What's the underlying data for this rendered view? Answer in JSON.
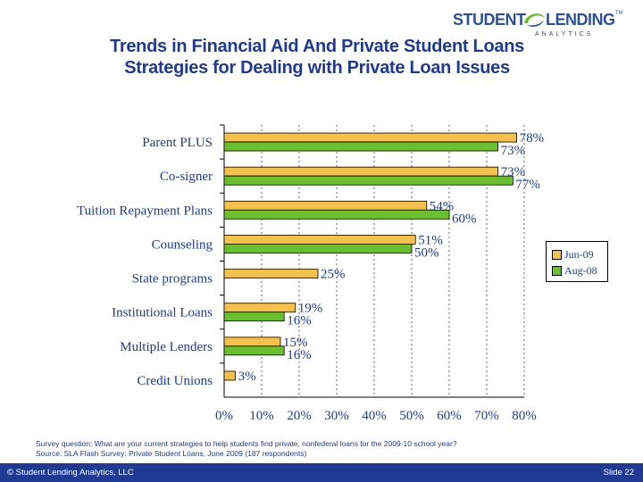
{
  "header": {
    "title_line1": "Trends in Financial Aid And Private Student Loans",
    "title_line2": "Strategies for Dealing with Private Loan Issues"
  },
  "logo": {
    "word1": "STUDENT",
    "word2": "LENDING",
    "tagline": "ANALYTICS",
    "tm": "TM"
  },
  "colors": {
    "jun09": "#f5c14b",
    "aug08": "#6abf2e",
    "text": "#1f3a93",
    "footer_bg": "#1f3a93"
  },
  "chart_data": {
    "type": "bar",
    "orientation": "horizontal",
    "categories": [
      "Parent PLUS",
      "Co-signer",
      "Tuition Repayment Plans",
      "Counseling",
      "State programs",
      "Institutional Loans",
      "Multiple Lenders",
      "Credit Unions"
    ],
    "series": [
      {
        "name": "Jun-09",
        "values": [
          78,
          73,
          54,
          51,
          25,
          19,
          15,
          3
        ],
        "labels": [
          "78%",
          "73%",
          "54%",
          "51%",
          "25%",
          "19%",
          "15%",
          "3%"
        ]
      },
      {
        "name": "Aug-08",
        "values": [
          73,
          77,
          60,
          50,
          null,
          16,
          16,
          null
        ],
        "labels": [
          "73%",
          "77%",
          "60%",
          "50%",
          "",
          "16%",
          "16%",
          ""
        ]
      }
    ],
    "xlim": [
      0,
      80
    ],
    "xticks": [
      "0%",
      "10%",
      "20%",
      "30%",
      "40%",
      "50%",
      "60%",
      "70%",
      "80%"
    ],
    "grid": true,
    "legend_position": "right"
  },
  "footnote": {
    "line1": "Survey question:  What are your current strategies to help students find private, nonfederal loans for the 2009-10 school year?",
    "line2": "Source:  SLA Flash Survey:  Private Student Loans, June 2009 (187 respondents)"
  },
  "footer": {
    "left": "© Student Lending Analytics, LLC",
    "right": "Slide 22"
  }
}
